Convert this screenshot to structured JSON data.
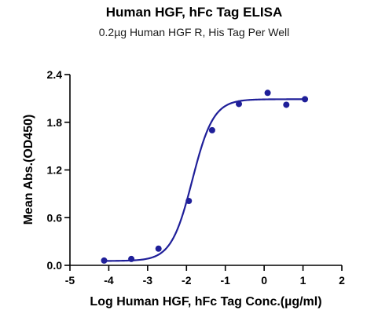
{
  "chart_data": {
    "type": "scatter",
    "title": "Human HGF, hFc Tag ELISA",
    "subtitle": "0.2µg Human HGF R, His Tag Per Well",
    "xlabel": "Log Human HGF, hFc Tag Conc.(µg/ml)",
    "ylabel": "Mean Abs.(OD450)",
    "xlim": [
      -5,
      2
    ],
    "ylim": [
      0,
      2.4
    ],
    "x_ticks": [
      -5,
      -4,
      -3,
      -2,
      -1,
      0,
      1,
      2
    ],
    "y_ticks": [
      0.0,
      0.6,
      1.2,
      1.8,
      2.4
    ],
    "y_tick_labels": [
      "0.0",
      "0.6",
      "1.2",
      "1.8",
      "2.4"
    ],
    "grid": false,
    "color": "#1f1f99",
    "series": [
      {
        "points": [
          {
            "x": -4.12,
            "y": 0.06
          },
          {
            "x": -3.42,
            "y": 0.08
          },
          {
            "x": -2.72,
            "y": 0.21
          },
          {
            "x": -1.94,
            "y": 0.81
          },
          {
            "x": -1.34,
            "y": 1.7
          },
          {
            "x": -0.65,
            "y": 2.03
          },
          {
            "x": 0.09,
            "y": 2.17
          },
          {
            "x": 0.57,
            "y": 2.02
          },
          {
            "x": 1.05,
            "y": 2.09
          }
        ],
        "fit": {
          "model": "4PL",
          "bottom": 0.055,
          "top": 2.09,
          "logEC50": -1.85,
          "hill": 1.6,
          "x_from": -4.12,
          "x_to": 1.05
        }
      }
    ]
  }
}
